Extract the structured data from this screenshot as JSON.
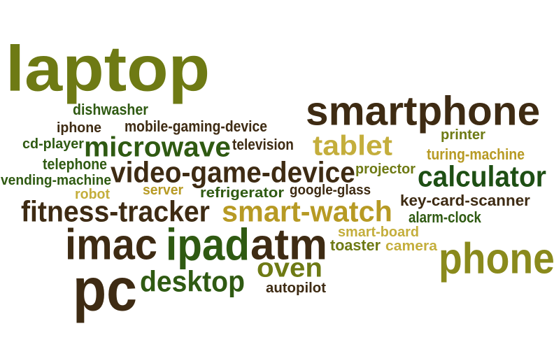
{
  "palette": {
    "olive": "#6E7A14",
    "brown": "#3E2B13",
    "green": "#2F5A12",
    "dark_green": "#1E4F14",
    "gold": "#B79A24",
    "khaki": "#C4AE3C",
    "dark_olive": "#8A8A1C"
  },
  "words": [
    {
      "text": "laptop",
      "color": "olive"
    },
    {
      "text": "smartphone",
      "color": "brown"
    },
    {
      "text": "dishwasher",
      "color": "green"
    },
    {
      "text": "iphone",
      "color": "brown"
    },
    {
      "text": "mobile-gaming-device",
      "color": "brown"
    },
    {
      "text": "printer",
      "color": "olive"
    },
    {
      "text": "cd-player",
      "color": "green"
    },
    {
      "text": "microwave",
      "color": "green"
    },
    {
      "text": "television",
      "color": "brown"
    },
    {
      "text": "tablet",
      "color": "khaki"
    },
    {
      "text": "turing-machine",
      "color": "gold"
    },
    {
      "text": "telephone",
      "color": "green"
    },
    {
      "text": "video-game-device",
      "color": "brown"
    },
    {
      "text": "projector",
      "color": "olive"
    },
    {
      "text": "calculator",
      "color": "dark_green"
    },
    {
      "text": "vending-machine",
      "color": "green"
    },
    {
      "text": "robot",
      "color": "khaki"
    },
    {
      "text": "server",
      "color": "gold"
    },
    {
      "text": "refrigerator",
      "color": "green"
    },
    {
      "text": "google-glass",
      "color": "brown"
    },
    {
      "text": "key-card-scanner",
      "color": "brown"
    },
    {
      "text": "fitness-tracker",
      "color": "brown"
    },
    {
      "text": "smart-watch",
      "color": "gold"
    },
    {
      "text": "alarm-clock",
      "color": "green"
    },
    {
      "text": "smart-board",
      "color": "khaki"
    },
    {
      "text": "imac",
      "color": "brown"
    },
    {
      "text": "ipad",
      "color": "green"
    },
    {
      "text": "atm",
      "color": "brown"
    },
    {
      "text": "toaster",
      "color": "olive"
    },
    {
      "text": "camera",
      "color": "khaki"
    },
    {
      "text": "phone",
      "color": "dark_olive"
    },
    {
      "text": "oven",
      "color": "olive"
    },
    {
      "text": "pc",
      "color": "brown"
    },
    {
      "text": "desktop",
      "color": "green"
    },
    {
      "text": "autopilot",
      "color": "brown"
    }
  ]
}
